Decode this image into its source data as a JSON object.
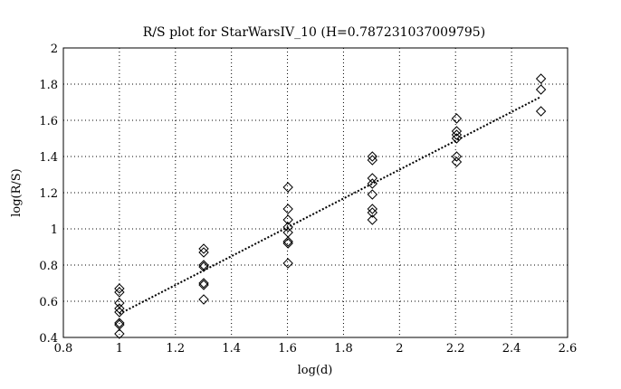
{
  "chart_data": {
    "type": "scatter",
    "title": "R/S plot for StarWarsIV_10 (H=0.787231037009795)",
    "xlabel": "log(d)",
    "ylabel": "log(R/S)",
    "xlim": [
      0.8,
      2.6
    ],
    "ylim": [
      0.4,
      2.0
    ],
    "x_ticks": [
      0.8,
      1.0,
      1.2,
      1.4,
      1.6,
      1.8,
      2.0,
      2.2,
      2.4,
      2.6
    ],
    "x_tick_labels": [
      "0.8",
      "1",
      "1.2",
      "1.4",
      "1.6",
      "1.8",
      "2",
      "2.2",
      "2.4",
      "2.6"
    ],
    "y_ticks": [
      0.4,
      0.6,
      0.8,
      1.0,
      1.2,
      1.4,
      1.6,
      1.8,
      2.0
    ],
    "y_tick_labels": [
      "0.4",
      "0.6",
      "0.8",
      "1",
      "1.2",
      "1.4",
      "1.6",
      "1.8",
      "2"
    ],
    "grid": true,
    "marker": "diamond",
    "series": [
      {
        "points": [
          [
            1.0,
            0.67
          ],
          [
            1.0,
            0.65
          ],
          [
            1.0,
            0.59
          ],
          [
            1.0,
            0.56
          ],
          [
            1.0,
            0.54
          ],
          [
            1.0,
            0.48
          ],
          [
            1.0,
            0.47
          ],
          [
            1.0,
            0.42
          ],
          [
            1.301,
            0.89
          ],
          [
            1.301,
            0.87
          ],
          [
            1.301,
            0.8
          ],
          [
            1.301,
            0.79
          ],
          [
            1.301,
            0.7
          ],
          [
            1.301,
            0.69
          ],
          [
            1.301,
            0.61
          ],
          [
            1.602,
            1.23
          ],
          [
            1.602,
            1.11
          ],
          [
            1.602,
            1.05
          ],
          [
            1.602,
            1.01
          ],
          [
            1.602,
            0.98
          ],
          [
            1.602,
            0.93
          ],
          [
            1.602,
            0.92
          ],
          [
            1.602,
            0.81
          ],
          [
            1.903,
            1.4
          ],
          [
            1.903,
            1.38
          ],
          [
            1.903,
            1.28
          ],
          [
            1.903,
            1.25
          ],
          [
            1.903,
            1.19
          ],
          [
            1.903,
            1.11
          ],
          [
            1.903,
            1.09
          ],
          [
            1.903,
            1.05
          ],
          [
            2.204,
            1.61
          ],
          [
            2.204,
            1.54
          ],
          [
            2.204,
            1.52
          ],
          [
            2.204,
            1.5
          ],
          [
            2.204,
            1.4
          ],
          [
            2.204,
            1.37
          ],
          [
            2.505,
            1.83
          ],
          [
            2.505,
            1.77
          ],
          [
            2.505,
            1.65
          ]
        ]
      }
    ],
    "fit_line": {
      "x": [
        1.0,
        2.505
      ],
      "y": [
        0.53,
        1.73
      ],
      "style": "dotted"
    }
  }
}
